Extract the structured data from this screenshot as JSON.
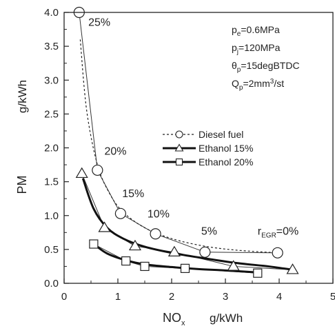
{
  "chart_data": {
    "type": "line",
    "x_axis": {
      "label": "NO",
      "label_sub": "x",
      "unit": "g/kWh",
      "range": [
        0,
        5
      ],
      "ticks": [
        "0",
        "1",
        "2",
        "3",
        "4",
        "5"
      ]
    },
    "y_axis": {
      "label": "PM",
      "unit": "g/kWh",
      "range": [
        0.0,
        4.0
      ],
      "ticks": [
        "0.0",
        "0.5",
        "1.0",
        "1.5",
        "2.0",
        "2.5",
        "3.0",
        "3.5",
        "4.0"
      ]
    },
    "series": [
      {
        "name": "Diesel fuel",
        "line": "dashed",
        "marker": "circle",
        "points": [
          [
            0.28,
            4.0
          ],
          [
            0.62,
            1.67
          ],
          [
            1.05,
            1.03
          ],
          [
            1.7,
            0.73
          ],
          [
            2.62,
            0.46
          ],
          [
            3.97,
            0.45
          ]
        ],
        "curve": [
          [
            0.3,
            3.6
          ],
          [
            0.42,
            2.55
          ],
          [
            0.62,
            1.75
          ],
          [
            0.85,
            1.32
          ],
          [
            1.1,
            1.05
          ],
          [
            1.5,
            0.82
          ],
          [
            2.0,
            0.66
          ],
          [
            2.6,
            0.55
          ],
          [
            3.2,
            0.49
          ],
          [
            3.97,
            0.45
          ]
        ]
      },
      {
        "name": "Ethanol 15%",
        "line": "thick",
        "marker": "triangle",
        "points": [
          [
            0.33,
            1.62
          ],
          [
            0.75,
            0.82
          ],
          [
            1.32,
            0.55
          ],
          [
            2.05,
            0.46
          ],
          [
            3.15,
            0.25
          ],
          [
            4.25,
            0.2
          ]
        ],
        "curve": [
          [
            0.35,
            1.55
          ],
          [
            0.55,
            1.1
          ],
          [
            0.8,
            0.82
          ],
          [
            1.1,
            0.66
          ],
          [
            1.5,
            0.54
          ],
          [
            2.0,
            0.45
          ],
          [
            2.6,
            0.37
          ],
          [
            3.2,
            0.3
          ],
          [
            3.8,
            0.25
          ],
          [
            4.25,
            0.2
          ]
        ]
      },
      {
        "name": "Ethanol 20%",
        "line": "thick",
        "marker": "square",
        "points": [
          [
            0.55,
            0.58
          ],
          [
            1.15,
            0.33
          ],
          [
            1.5,
            0.25
          ],
          [
            2.25,
            0.22
          ],
          [
            3.6,
            0.15
          ]
        ],
        "curve": [
          [
            0.55,
            0.58
          ],
          [
            0.8,
            0.44
          ],
          [
            1.15,
            0.34
          ],
          [
            1.5,
            0.28
          ],
          [
            2.0,
            0.24
          ],
          [
            2.5,
            0.21
          ],
          [
            3.0,
            0.19
          ],
          [
            3.6,
            0.16
          ]
        ]
      }
    ],
    "annotations": [
      {
        "text": "25%",
        "x": 0.45,
        "y": 3.8
      },
      {
        "text": "20%",
        "x": 0.75,
        "y": 1.9
      },
      {
        "text": "15%",
        "x": 1.08,
        "y": 1.27
      },
      {
        "text": "10%",
        "x": 1.55,
        "y": 0.97
      },
      {
        "text": "5%",
        "x": 2.55,
        "y": 0.72
      }
    ],
    "egr_label": {
      "prefix": "r",
      "sub": "EGR",
      "suffix": "=0%"
    },
    "conditions": [
      {
        "prefix": "p",
        "sub": "e",
        "suffix": "=0.6MPa"
      },
      {
        "prefix": "p",
        "sub": "j",
        "suffix": "=120MPa"
      },
      {
        "prefix": "θ",
        "sub": "p",
        "suffix": "=15degBTDC"
      },
      {
        "prefix": "Q",
        "sub": "p",
        "suffix": "=2mm",
        "sup": "3",
        "tail": "/st"
      }
    ],
    "grid": false,
    "legend_position": "center-right"
  }
}
